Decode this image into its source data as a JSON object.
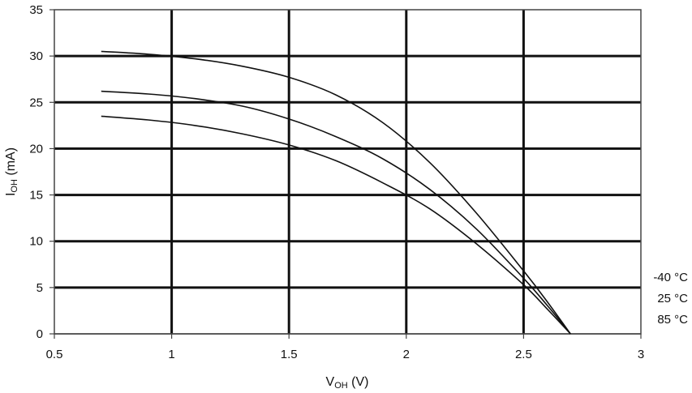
{
  "chart_data": {
    "type": "line",
    "title": "",
    "xlabel": {
      "main": "V",
      "sub": "OH",
      "unit": " (V)"
    },
    "ylabel": {
      "main": "I",
      "sub": "OH",
      "unit": " (mA)"
    },
    "xlim": [
      0.5,
      3
    ],
    "ylim": [
      0,
      35
    ],
    "x_ticks": [
      0.5,
      1,
      1.5,
      2,
      2.5,
      3
    ],
    "x_tick_labels": [
      "0.5",
      "1",
      "1.5",
      "2",
      "2.5",
      "3"
    ],
    "y_ticks": [
      0,
      5,
      10,
      15,
      20,
      25,
      30,
      35
    ],
    "y_tick_labels": [
      "0",
      "5",
      "10",
      "15",
      "20",
      "25",
      "30",
      "35"
    ],
    "grid": true,
    "legend_placement": "right",
    "series": [
      {
        "name": "-40 °C",
        "x": [
          0.7,
          0.9,
          1.1,
          1.3,
          1.5,
          1.7,
          1.9,
          2.1,
          2.3,
          2.5,
          2.6,
          2.7
        ],
        "y": [
          30.5,
          30.2,
          29.7,
          28.9,
          27.7,
          25.8,
          22.8,
          18.5,
          13.0,
          6.8,
          3.5,
          0
        ]
      },
      {
        "name": "25 °C",
        "x": [
          0.7,
          0.9,
          1.1,
          1.3,
          1.5,
          1.7,
          1.9,
          2.1,
          2.3,
          2.5,
          2.6,
          2.7
        ],
        "y": [
          26.2,
          25.9,
          25.4,
          24.6,
          23.2,
          21.3,
          18.9,
          15.6,
          11.3,
          6.0,
          3.1,
          0
        ]
      },
      {
        "name": "85 °C",
        "x": [
          0.7,
          0.9,
          1.1,
          1.3,
          1.5,
          1.7,
          1.9,
          2.1,
          2.3,
          2.5,
          2.6,
          2.7
        ],
        "y": [
          23.5,
          23.1,
          22.5,
          21.6,
          20.4,
          18.7,
          16.3,
          13.5,
          9.7,
          5.3,
          2.7,
          0
        ]
      }
    ]
  }
}
